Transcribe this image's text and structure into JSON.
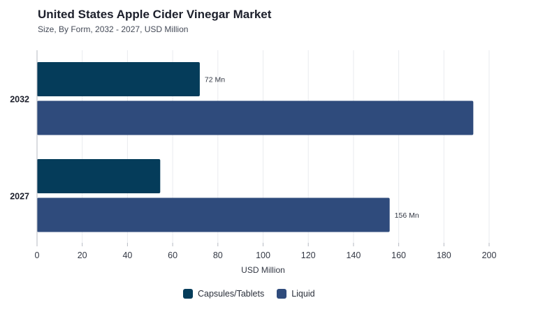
{
  "header": {
    "title": "United States Apple Cider Vinegar Market",
    "subtitle": "Size, By Form, 2032 - 2027, USD Million"
  },
  "chart_data": {
    "type": "bar",
    "orientation": "horizontal",
    "categories": [
      "2032",
      "2027"
    ],
    "series": [
      {
        "name": "Capsules/Tablets",
        "values": [
          72,
          54.5
        ],
        "color": "#053c5a",
        "data_labels": [
          "72 Mn",
          ""
        ]
      },
      {
        "name": "Liquid",
        "values": [
          193,
          156
        ],
        "color": "#2f4b7c",
        "data_labels": [
          "",
          "156 Mn"
        ]
      }
    ],
    "xlabel": "USD Million",
    "ylabel": "",
    "xlim": [
      0,
      200
    ],
    "xticks": [
      "0",
      "20",
      "40",
      "60",
      "80",
      "100",
      "120",
      "140",
      "160",
      "180",
      "200"
    ],
    "grid": true,
    "legend_position": "bottom"
  }
}
